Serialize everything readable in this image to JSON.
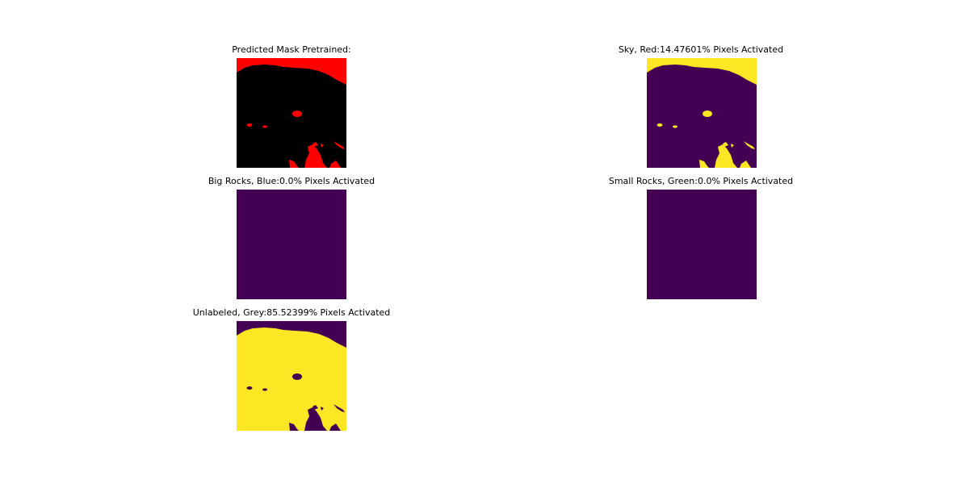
{
  "figure": {
    "panels": [
      {
        "title": "Predicted Mask Pretrained:",
        "kind": "mask"
      },
      {
        "title": "Sky, Red:14.47601% Pixels Activated",
        "kind": "sky"
      },
      {
        "title": "Big Rocks, Blue:0.0% Pixels Activated",
        "kind": "empty"
      },
      {
        "title": "Small Rocks, Green:0.0% Pixels Activated",
        "kind": "empty"
      },
      {
        "title": "Unlabeled, Grey:85.52399% Pixels Activated",
        "kind": "unlabeled"
      }
    ],
    "colors": {
      "viridis_low": "#440154",
      "viridis_high": "#fde725",
      "mask_sky": "#ff0000",
      "mask_background": "#000000"
    }
  }
}
